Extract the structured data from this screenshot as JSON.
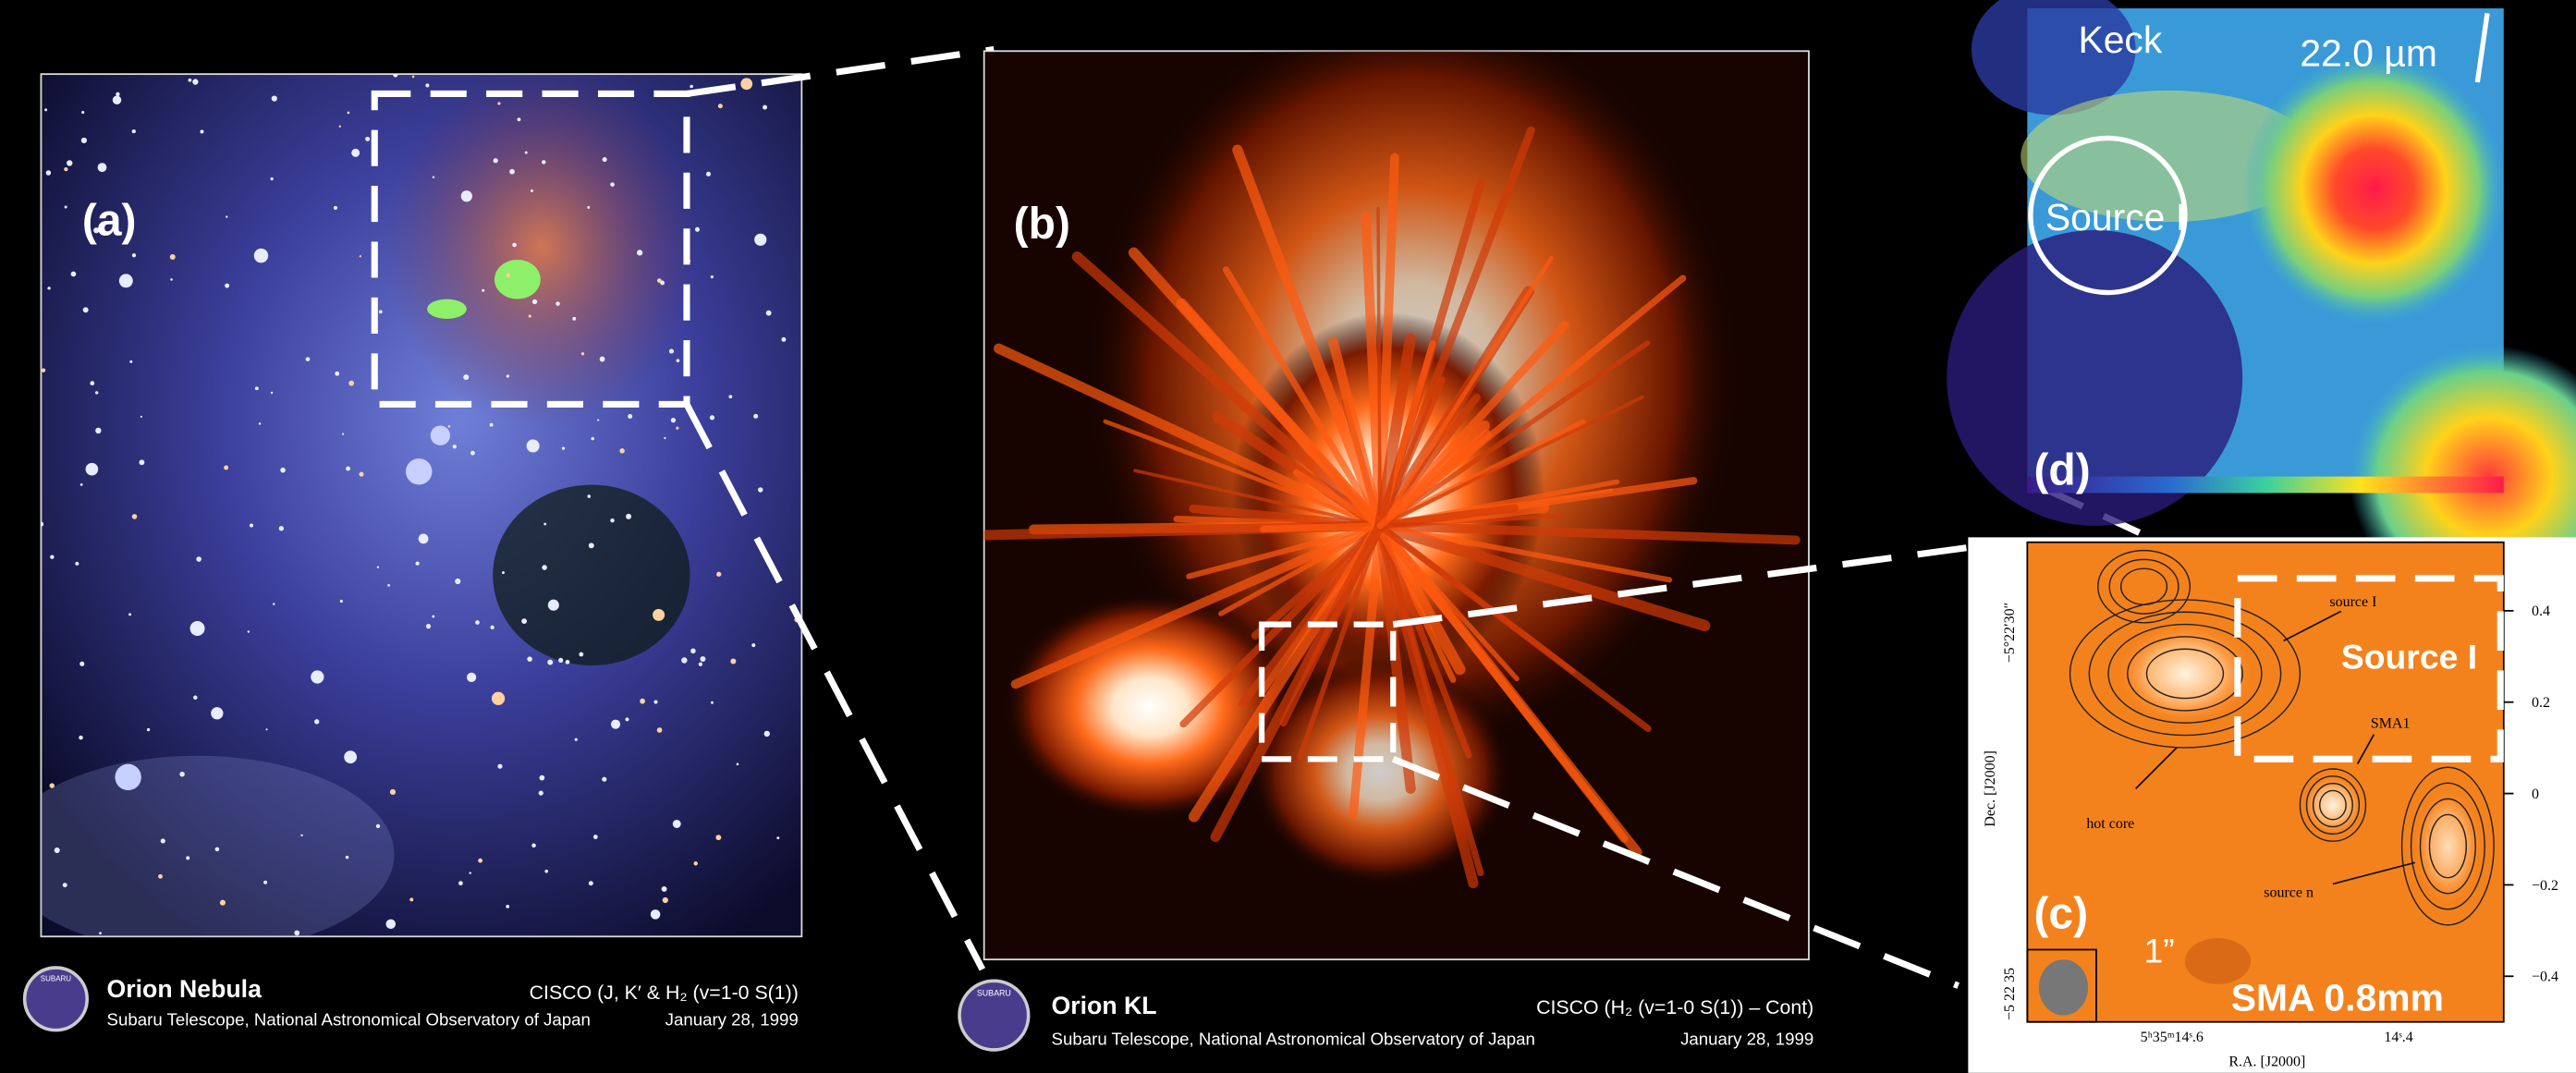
{
  "panels": {
    "a": {
      "label": "(a)",
      "title": "Orion Nebula",
      "instrument": "CISCO (J, K′ & H₂ (v=1-0 S(1))",
      "credit": "Subaru Telescope, National Astronomical Observatory of Japan",
      "date": "January 28, 1999",
      "logo": "SUBARU"
    },
    "b": {
      "label": "(b)",
      "title": "Orion KL",
      "instrument": "CISCO (H₂ (v=1-0 S(1)) – Cont)",
      "credit": "Subaru Telescope, National Astronomical Observatory of Japan",
      "date": "January 28, 1999",
      "logo": "SUBARU"
    },
    "c": {
      "label": "(c)",
      "name": "SMA 0.8mm",
      "box_label": "Source I",
      "scale_bar": "1”",
      "annotations": [
        "source I",
        "SMA1",
        "hot core",
        "source n"
      ],
      "x_label": "R.A. [J2000]",
      "y_label": "Dec. [J2000]",
      "x_ticks": [
        "5ʰ35ᵐ14ˢ.6",
        "14ˢ.4"
      ],
      "y_ticks": [
        "−5°22′30″",
        "−5 22 35"
      ],
      "colorbar_lim": [
        -0.5,
        0.55
      ],
      "colorbar_ticks": [
        0.4,
        0.2,
        0,
        {
          "value": -0.2,
          "label": "−0.2"
        },
        {
          "value": -0.4,
          "label": "−0.4"
        }
      ]
    },
    "d": {
      "label": "(d)",
      "telescope": "Keck",
      "wavelength": "22.0 µm",
      "source": "Source I"
    }
  }
}
